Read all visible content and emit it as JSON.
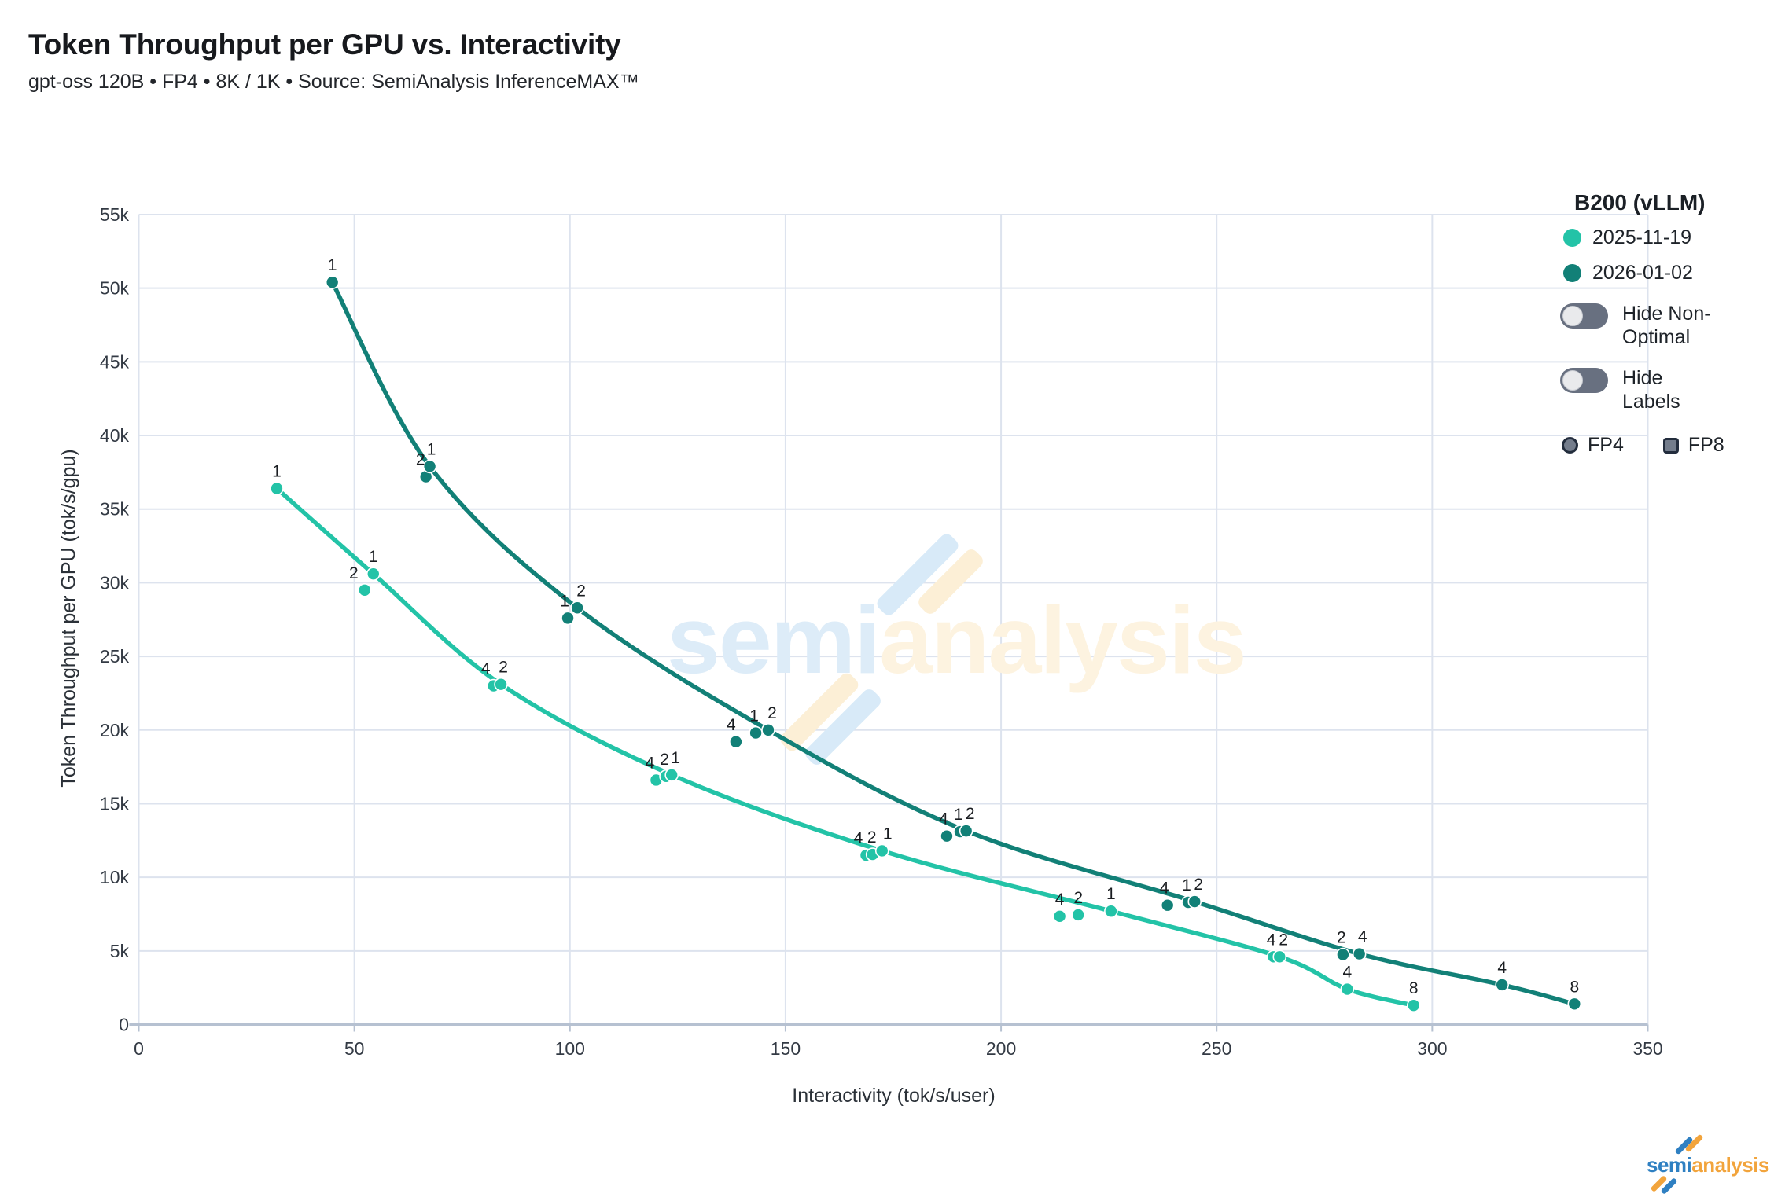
{
  "header": {
    "title": "Token Throughput per GPU vs. Interactivity",
    "subtitle": "gpt-oss 120B • FP4 • 8K / 1K • Source: SemiAnalysis InferenceMAX™"
  },
  "axes": {
    "x": {
      "title": "Interactivity (tok/s/user)",
      "tick_labels": [
        "0",
        "50",
        "100",
        "150",
        "200",
        "250",
        "300",
        "350"
      ],
      "tick_values": [
        0,
        50,
        100,
        150,
        200,
        250,
        300,
        350
      ]
    },
    "y": {
      "title": "Token Throughput per GPU (tok/s/gpu)",
      "tick_labels": [
        "0",
        "5k",
        "10k",
        "15k",
        "20k",
        "25k",
        "30k",
        "35k",
        "40k",
        "45k",
        "50k",
        "55k"
      ],
      "tick_values": [
        0,
        5000,
        10000,
        15000,
        20000,
        25000,
        30000,
        35000,
        40000,
        45000,
        50000,
        55000
      ]
    }
  },
  "legend": {
    "title": "B200 (vLLM)",
    "series": [
      {
        "label": "2025-11-19",
        "color": "#23c3a7"
      },
      {
        "label": "2026-01-02",
        "color": "#128077"
      }
    ],
    "toggles": [
      {
        "label": "Hide Non-Optimal",
        "state": "off"
      },
      {
        "label": "Hide Labels",
        "state": "off"
      }
    ],
    "shapes": [
      {
        "label": "FP4",
        "shape": "circle"
      },
      {
        "label": "FP8",
        "shape": "square"
      }
    ]
  },
  "watermark": {
    "part1": "semi",
    "part2": "analysis",
    "colors": {
      "blue_text": "#ddecf8",
      "orange_text": "#fdf3e0",
      "blue_slash": "#d8eaf8",
      "orange_slash": "#fcefd6"
    }
  },
  "logo": {
    "part1": "semi",
    "part2": "analysis",
    "blue": "#2f80c2",
    "orange": "#f2a43c"
  },
  "chart_data": {
    "type": "scatter-line",
    "title": "Token Throughput per GPU vs. Interactivity",
    "xlabel": "Interactivity (tok/s/user)",
    "ylabel": "Token Throughput per GPU (tok/s/gpu)",
    "xlim": [
      0,
      350
    ],
    "ylim": [
      0,
      55000
    ],
    "grid": true,
    "legend_position": "top-right",
    "point_label_meaning": "parallelism config shown next to each point; curve connects optimal points",
    "series": [
      {
        "name": "2025-11-19",
        "color": "#23c3a7",
        "points": [
          {
            "x": 32.0,
            "y": 36400,
            "label": "1",
            "optimal": true
          },
          {
            "x": 52.4,
            "y": 29500,
            "label": "2",
            "optimal": false,
            "dx": -14
          },
          {
            "x": 54.4,
            "y": 30600,
            "label": "1",
            "optimal": true
          },
          {
            "x": 82.3,
            "y": 23000,
            "label": "4",
            "optimal": false,
            "dx": -10
          },
          {
            "x": 84.0,
            "y": 23100,
            "label": "2",
            "optimal": true,
            "dx": 3
          },
          {
            "x": 120.0,
            "y": 16600,
            "label": "4",
            "optimal": false,
            "dx": -8
          },
          {
            "x": 122.3,
            "y": 16850,
            "label": "2",
            "optimal": false,
            "dx": -2
          },
          {
            "x": 123.6,
            "y": 16950,
            "label": "1",
            "optimal": true,
            "dx": 5
          },
          {
            "x": 168.7,
            "y": 11500,
            "label": "4",
            "optimal": false,
            "dx": -10
          },
          {
            "x": 170.2,
            "y": 11550,
            "label": "2",
            "optimal": false,
            "dx": -1
          },
          {
            "x": 172.4,
            "y": 11800,
            "label": "1",
            "optimal": true,
            "dx": 7
          },
          {
            "x": 213.6,
            "y": 7350,
            "label": "4",
            "optimal": false
          },
          {
            "x": 217.9,
            "y": 7450,
            "label": "2",
            "optimal": false
          },
          {
            "x": 225.5,
            "y": 7700,
            "label": "1",
            "optimal": true
          },
          {
            "x": 263.2,
            "y": 4600,
            "label": "4",
            "optimal": false,
            "dx": -3
          },
          {
            "x": 264.6,
            "y": 4600,
            "label": "2",
            "optimal": true,
            "dx": 5
          },
          {
            "x": 280.3,
            "y": 2400,
            "label": "4",
            "optimal": true
          },
          {
            "x": 295.7,
            "y": 1300,
            "label": "8",
            "optimal": true
          }
        ]
      },
      {
        "name": "2026-01-02",
        "color": "#128077",
        "points": [
          {
            "x": 44.9,
            "y": 50400,
            "label": "1",
            "optimal": true
          },
          {
            "x": 66.6,
            "y": 37200,
            "label": "2",
            "optimal": false,
            "dx": -7
          },
          {
            "x": 67.5,
            "y": 37900,
            "label": "1",
            "optimal": true,
            "dx": 2
          },
          {
            "x": 99.5,
            "y": 27600,
            "label": "1",
            "optimal": false,
            "dx": -4
          },
          {
            "x": 101.7,
            "y": 28300,
            "label": "2",
            "optimal": true,
            "dx": 5
          },
          {
            "x": 138.5,
            "y": 19200,
            "label": "4",
            "optimal": false,
            "dx": -6
          },
          {
            "x": 143.1,
            "y": 19800,
            "label": "1",
            "optimal": false,
            "dx": -2
          },
          {
            "x": 146.0,
            "y": 20000,
            "label": "2",
            "optimal": true,
            "dx": 5
          },
          {
            "x": 187.4,
            "y": 12800,
            "label": "4",
            "optimal": false,
            "dx": -4
          },
          {
            "x": 190.5,
            "y": 13100,
            "label": "1",
            "optimal": false,
            "dx": -2
          },
          {
            "x": 191.9,
            "y": 13150,
            "label": "2",
            "optimal": true,
            "dx": 5
          },
          {
            "x": 238.6,
            "y": 8100,
            "label": "4",
            "optimal": false,
            "dx": -4
          },
          {
            "x": 243.4,
            "y": 8300,
            "label": "1",
            "optimal": false,
            "dx": -2
          },
          {
            "x": 244.9,
            "y": 8350,
            "label": "2",
            "optimal": true,
            "dx": 5
          },
          {
            "x": 279.3,
            "y": 4750,
            "label": "2",
            "optimal": false,
            "dx": -2
          },
          {
            "x": 283.1,
            "y": 4800,
            "label": "4",
            "optimal": true,
            "dx": 4
          },
          {
            "x": 316.2,
            "y": 2700,
            "label": "4",
            "optimal": true
          },
          {
            "x": 333.0,
            "y": 1400,
            "label": "8",
            "optimal": true
          }
        ]
      }
    ]
  }
}
